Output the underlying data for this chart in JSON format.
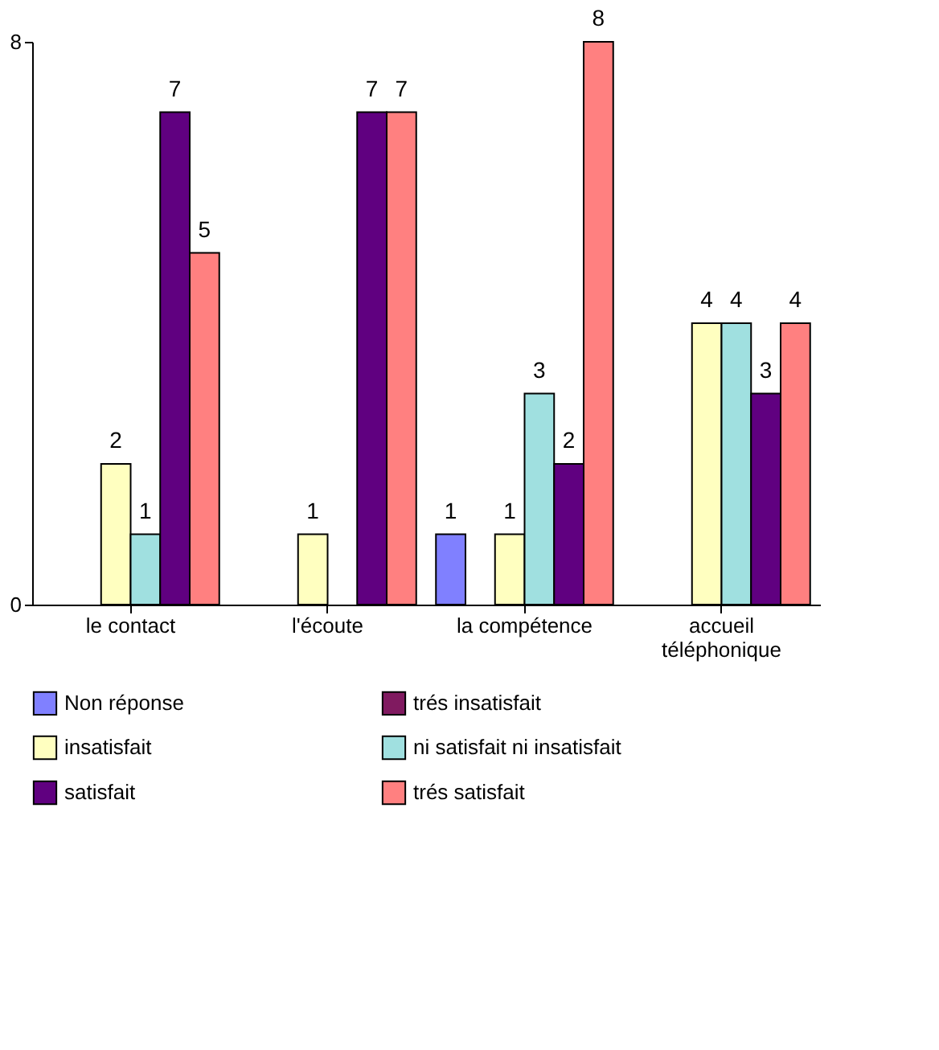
{
  "chart_data": {
    "type": "bar",
    "categories": [
      "le contact",
      "l'écoute",
      "la compétence",
      "accueil téléphonique"
    ],
    "series": [
      {
        "name": "Non réponse",
        "color": "#8080ff",
        "values": [
          null,
          null,
          1,
          null
        ]
      },
      {
        "name": "trés insatisfait",
        "color": "#801a60",
        "values": [
          null,
          null,
          null,
          null
        ]
      },
      {
        "name": "insatisfait",
        "color": "#ffffc0",
        "values": [
          2,
          1,
          1,
          4
        ]
      },
      {
        "name": "ni satisfait ni insatisfait",
        "color": "#a0e0e0",
        "values": [
          1,
          null,
          3,
          4
        ]
      },
      {
        "name": "satisfait",
        "color": "#600080",
        "values": [
          7,
          7,
          2,
          3
        ]
      },
      {
        "name": "trés satisfait",
        "color": "#ff8080",
        "values": [
          5,
          7,
          8,
          4
        ]
      }
    ],
    "ylim": [
      0,
      8
    ],
    "yticks": [
      0,
      8
    ],
    "grid": false,
    "legend": "bottom",
    "data_labels": true
  }
}
